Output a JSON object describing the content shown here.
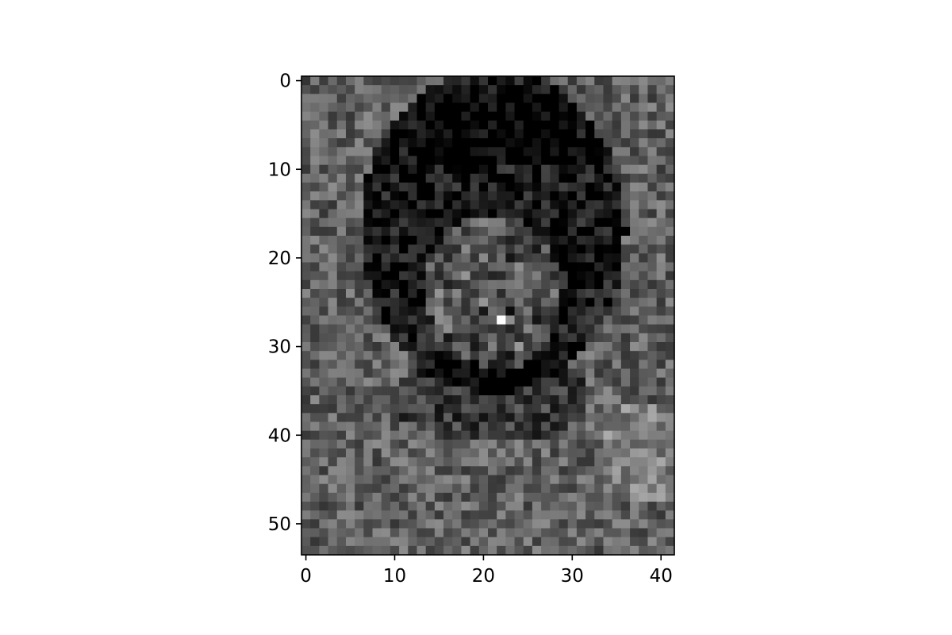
{
  "chart_data": {
    "type": "heatmap",
    "colormap": "gray",
    "origin": "upper",
    "rows": 54,
    "cols": 42,
    "xlim": [
      -0.5,
      41.5
    ],
    "ylim": [
      53.5,
      -0.5
    ],
    "x_ticks": [
      0,
      10,
      20,
      30,
      40
    ],
    "y_ticks": [
      0,
      10,
      20,
      30,
      40,
      50
    ],
    "x_tick_labels": [
      "0",
      "10",
      "20",
      "30",
      "40"
    ],
    "y_tick_labels": [
      "0",
      "10",
      "20",
      "30",
      "40",
      "50"
    ],
    "grid": false,
    "colorbar": false,
    "value_range": [
      0,
      1
    ],
    "description_of_values": "grayscale intensity",
    "bright_pixel": {
      "col": 22,
      "row": 27,
      "value": 1.0
    }
  }
}
